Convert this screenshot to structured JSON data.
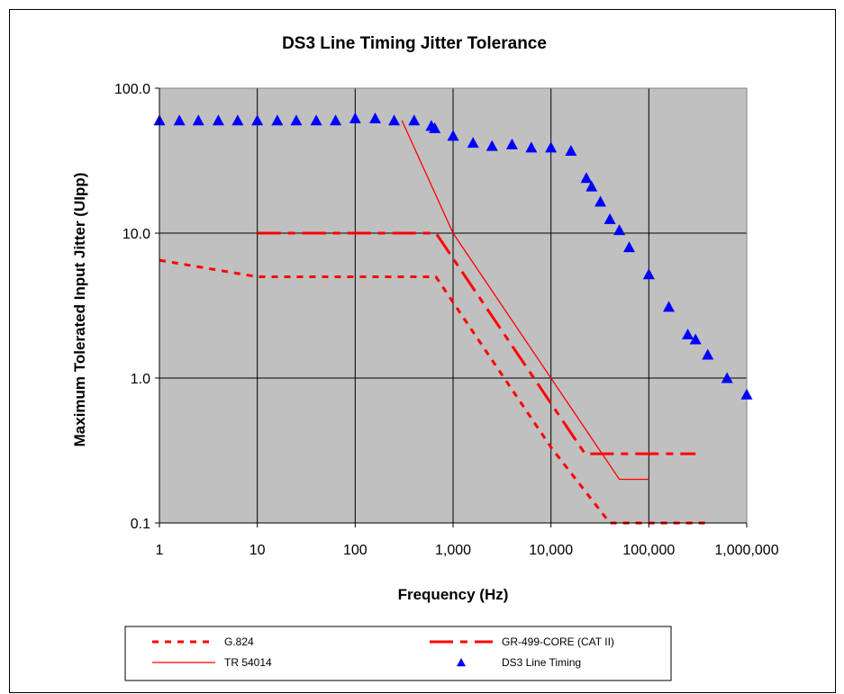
{
  "chart_data": {
    "type": "line",
    "title": "DS3 Line Timing Jitter Tolerance",
    "xlabel": "Frequency (Hz)",
    "ylabel": "Maximum Tolerated Input Jitter (UIpp)",
    "xscale": "log",
    "yscale": "log",
    "xlim": [
      1,
      1000000
    ],
    "ylim": [
      0.1,
      100
    ],
    "x_tick_labels": [
      "1",
      "10",
      "100",
      "1,000",
      "10,000",
      "100,000",
      "1,000,000"
    ],
    "y_tick_labels": [
      "100.0",
      "10.0",
      "1.0",
      "0.1"
    ],
    "grid": true,
    "plot_background": "#c0c0c0",
    "legend_position": "bottom",
    "series": [
      {
        "name": "G.824",
        "style": "dashed-short",
        "color": "#ff0000",
        "x": [
          1,
          10,
          100,
          667,
          1000,
          10000,
          40000,
          400000
        ],
        "y": [
          6.5,
          5.0,
          5.0,
          5.0,
          3.33,
          0.333,
          0.1,
          0.1
        ]
      },
      {
        "name": "GR-499-CORE (CAT II)",
        "style": "dash-dot",
        "color": "#ff0000",
        "x": [
          10,
          100,
          669,
          1000,
          10000,
          22300,
          300000
        ],
        "y": [
          10,
          10,
          10,
          6.69,
          0.669,
          0.3,
          0.3
        ]
      },
      {
        "name": "TR 54014",
        "style": "solid",
        "color": "#ff0000",
        "x": [
          300,
          1000,
          10000,
          50000,
          100000
        ],
        "y": [
          60,
          10,
          1.0,
          0.2,
          0.2
        ]
      },
      {
        "name": "DS3 Line Timing",
        "style": "markers-triangle",
        "color": "#0000ff",
        "x": [
          1,
          1.6,
          2.5,
          4,
          6.3,
          10,
          16,
          25,
          40,
          63,
          100,
          160,
          250,
          400,
          600,
          650,
          1000,
          1600,
          2500,
          4000,
          6300,
          10000,
          16000,
          23000,
          26000,
          32000,
          40000,
          50000,
          63000,
          100000,
          160000,
          250000,
          300000,
          400000,
          630000,
          1000000
        ],
        "y": [
          60,
          60,
          60,
          60,
          60,
          60,
          60,
          60,
          60,
          60,
          62,
          62,
          60,
          60,
          55,
          53,
          47,
          42,
          40,
          41,
          39,
          39,
          37,
          24,
          21,
          16.5,
          12.5,
          10.5,
          8,
          5.2,
          3.1,
          2,
          1.85,
          1.45,
          1.0,
          0.77
        ]
      }
    ]
  }
}
